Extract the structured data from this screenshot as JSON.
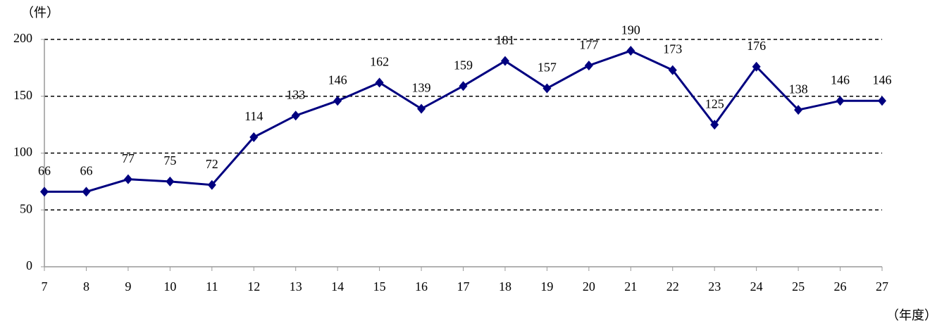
{
  "chart_data": {
    "type": "line",
    "y_label": "（件）",
    "x_label": "（年度）",
    "categories": [
      "7",
      "8",
      "9",
      "10",
      "11",
      "12",
      "13",
      "14",
      "15",
      "16",
      "17",
      "18",
      "19",
      "20",
      "21",
      "22",
      "23",
      "24",
      "25",
      "26",
      "27"
    ],
    "series": [
      {
        "color": "#000080",
        "values": [
          66,
          66,
          77,
          75,
          72,
          114,
          133,
          146,
          162,
          139,
          159,
          181,
          157,
          177,
          190,
          173,
          125,
          176,
          138,
          146,
          146
        ]
      }
    ],
    "ylim": [
      0,
      200
    ],
    "yticks": [
      0,
      50,
      100,
      150,
      200
    ],
    "grid": true,
    "data_labels": true
  }
}
